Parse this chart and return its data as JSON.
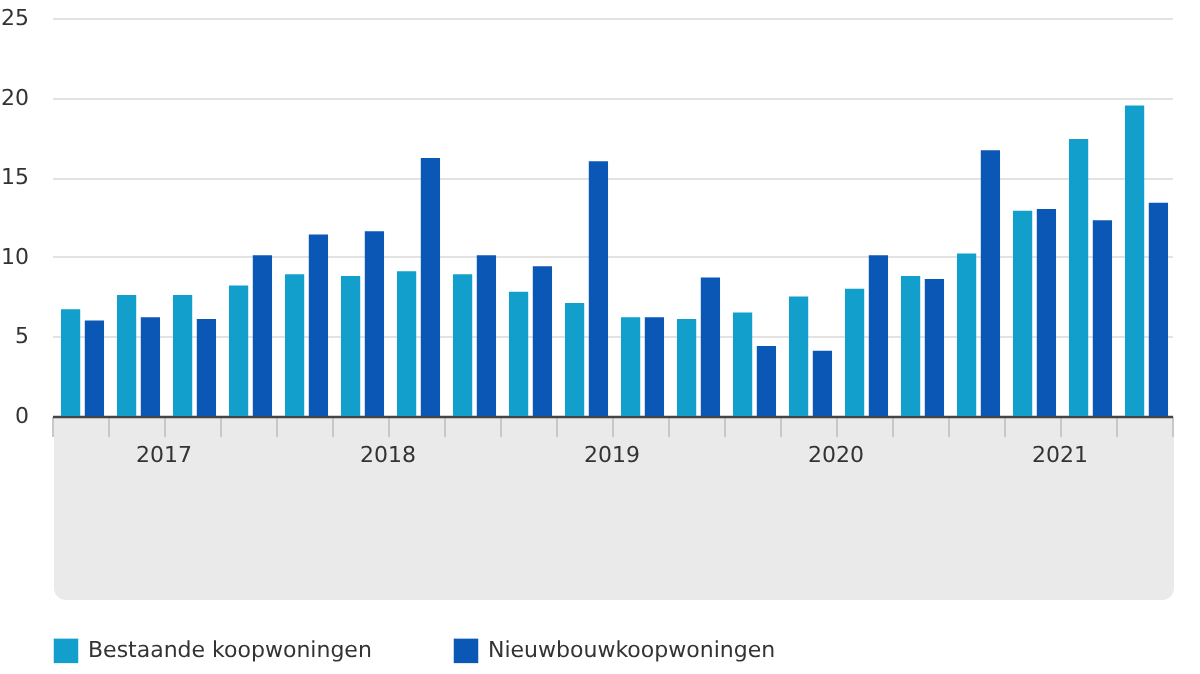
{
  "chart_data": {
    "type": "bar",
    "categories": [
      null,
      null,
      null,
      null,
      null,
      null,
      null,
      null,
      null,
      null,
      null,
      null,
      null,
      null,
      null,
      null,
      null,
      null,
      null,
      null
    ],
    "series": [
      {
        "name": "Bestaande koopwoningen",
        "color": "#129fcc",
        "values": [
          6.7,
          7.6,
          7.6,
          8.2,
          8.9,
          8.8,
          9.1,
          8.9,
          7.8,
          7.1,
          6.2,
          6.1,
          6.5,
          7.5,
          8.0,
          8.8,
          10.2,
          12.9,
          17.4,
          19.5
        ]
      },
      {
        "name": "Nieuwbouwkoopwoningen",
        "color": "#0b57b5",
        "values": [
          6.0,
          6.2,
          6.1,
          10.1,
          11.4,
          11.6,
          16.2,
          10.1,
          9.4,
          16.0,
          6.2,
          8.7,
          4.4,
          4.1,
          10.1,
          8.6,
          16.7,
          13.0,
          12.3,
          13.4
        ]
      }
    ],
    "annotations": [
      "2017",
      "2018",
      "2019",
      "2020",
      "2021"
    ],
    "ylim": [
      0,
      25
    ],
    "yticks": [
      0,
      5,
      10,
      15,
      20,
      25
    ],
    "grid": "y",
    "legend": "bottom"
  }
}
